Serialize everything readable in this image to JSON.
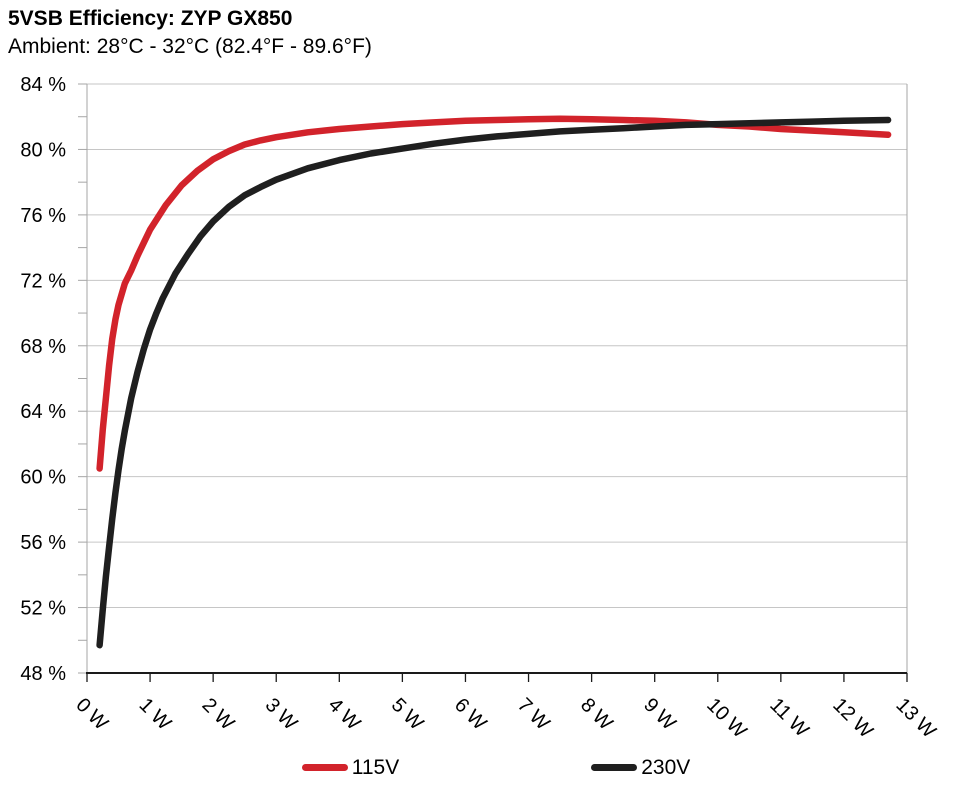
{
  "colors": {
    "red_series": "#d2232b",
    "black_series": "#1f1f1f",
    "gridline": "#c6c6c6",
    "axis_gray": "#a6a6a6",
    "axis_black": "#1a1a1a",
    "text": "#000000",
    "background": "#ffffff"
  },
  "chart_data": {
    "type": "line",
    "title": "5VSB Efficiency: ZYP GX850",
    "subtitle": "Ambient: 28°C - 32°C (82.4°F - 89.6°F)",
    "grid": "horizontal-major",
    "legend_position": "bottom",
    "x_axis": {
      "range": [
        0,
        13
      ],
      "ticks": [
        0,
        1,
        2,
        3,
        4,
        5,
        6,
        7,
        8,
        9,
        10,
        11,
        12,
        13
      ],
      "tick_suffix": " W",
      "tick_label_rotation_deg": 45
    },
    "y_axis": {
      "range": [
        48,
        84
      ],
      "major_step": 4,
      "minor_step": 2,
      "ticks": [
        84,
        80,
        76,
        72,
        68,
        64,
        60,
        56,
        52,
        48
      ],
      "tick_suffix": " %"
    },
    "series": [
      {
        "name": "115V",
        "color": "#d2232b",
        "points": [
          [
            0.2,
            60.5
          ],
          [
            0.25,
            62.9
          ],
          [
            0.3,
            64.8
          ],
          [
            0.35,
            66.8
          ],
          [
            0.4,
            68.4
          ],
          [
            0.45,
            69.6
          ],
          [
            0.5,
            70.5
          ],
          [
            0.6,
            71.8
          ],
          [
            0.7,
            72.6
          ],
          [
            0.8,
            73.5
          ],
          [
            0.9,
            74.3
          ],
          [
            1,
            75.1
          ],
          [
            1.25,
            76.6
          ],
          [
            1.5,
            77.8
          ],
          [
            1.75,
            78.7
          ],
          [
            2,
            79.4
          ],
          [
            2.25,
            79.9
          ],
          [
            2.5,
            80.3
          ],
          [
            2.75,
            80.55
          ],
          [
            3,
            80.75
          ],
          [
            3.5,
            81.05
          ],
          [
            4,
            81.25
          ],
          [
            4.5,
            81.4
          ],
          [
            5,
            81.55
          ],
          [
            5.5,
            81.65
          ],
          [
            6,
            81.75
          ],
          [
            6.5,
            81.8
          ],
          [
            7,
            81.85
          ],
          [
            7.5,
            81.87
          ],
          [
            8,
            81.85
          ],
          [
            8.5,
            81.8
          ],
          [
            9,
            81.75
          ],
          [
            9.5,
            81.65
          ],
          [
            10,
            81.5
          ],
          [
            10.5,
            81.4
          ],
          [
            11,
            81.25
          ],
          [
            11.5,
            81.15
          ],
          [
            12,
            81.05
          ],
          [
            12.7,
            80.9
          ]
        ]
      },
      {
        "name": "230V",
        "color": "#1f1f1f",
        "points": [
          [
            0.2,
            49.7
          ],
          [
            0.25,
            51.9
          ],
          [
            0.3,
            53.9
          ],
          [
            0.35,
            55.7
          ],
          [
            0.4,
            57.4
          ],
          [
            0.45,
            59.0
          ],
          [
            0.5,
            60.4
          ],
          [
            0.55,
            61.7
          ],
          [
            0.6,
            62.8
          ],
          [
            0.7,
            64.8
          ],
          [
            0.8,
            66.4
          ],
          [
            0.9,
            67.8
          ],
          [
            1,
            69.0
          ],
          [
            1.1,
            70.0
          ],
          [
            1.2,
            70.9
          ],
          [
            1.4,
            72.4
          ],
          [
            1.6,
            73.6
          ],
          [
            1.8,
            74.7
          ],
          [
            2,
            75.6
          ],
          [
            2.25,
            76.5
          ],
          [
            2.5,
            77.2
          ],
          [
            2.75,
            77.7
          ],
          [
            3,
            78.15
          ],
          [
            3.5,
            78.85
          ],
          [
            4,
            79.35
          ],
          [
            4.5,
            79.75
          ],
          [
            5,
            80.05
          ],
          [
            5.5,
            80.35
          ],
          [
            6,
            80.6
          ],
          [
            6.5,
            80.8
          ],
          [
            7,
            80.95
          ],
          [
            7.5,
            81.1
          ],
          [
            8,
            81.2
          ],
          [
            8.5,
            81.3
          ],
          [
            9,
            81.4
          ],
          [
            9.5,
            81.5
          ],
          [
            10,
            81.55
          ],
          [
            10.5,
            81.6
          ],
          [
            11,
            81.65
          ],
          [
            11.5,
            81.7
          ],
          [
            12,
            81.75
          ],
          [
            12.7,
            81.8
          ]
        ]
      }
    ]
  }
}
